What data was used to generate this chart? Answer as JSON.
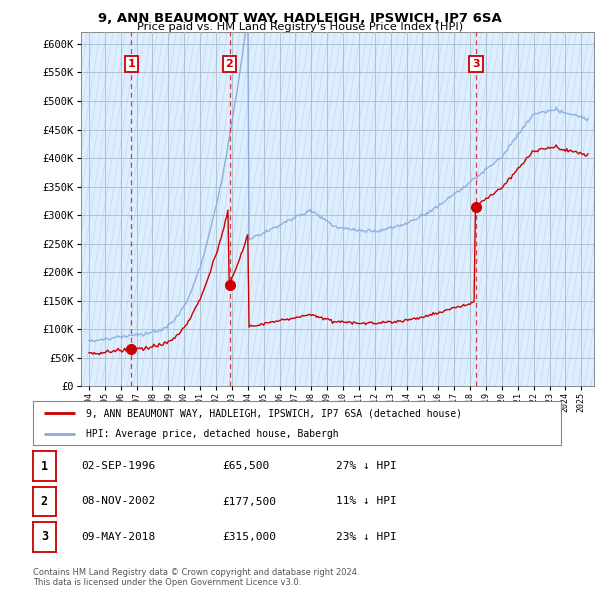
{
  "title": "9, ANN BEAUMONT WAY, HADLEIGH, IPSWICH, IP7 6SA",
  "subtitle": "Price paid vs. HM Land Registry's House Price Index (HPI)",
  "ylim": [
    0,
    620000
  ],
  "yticks": [
    0,
    50000,
    100000,
    150000,
    200000,
    250000,
    300000,
    350000,
    400000,
    450000,
    500000,
    550000,
    600000
  ],
  "ytick_labels": [
    "£0",
    "£50K",
    "£100K",
    "£150K",
    "£200K",
    "£250K",
    "£300K",
    "£350K",
    "£400K",
    "£450K",
    "£500K",
    "£550K",
    "£600K"
  ],
  "legend_line1": "9, ANN BEAUMONT WAY, HADLEIGH, IPSWICH, IP7 6SA (detached house)",
  "legend_line2": "HPI: Average price, detached house, Babergh",
  "sale_color": "#cc0000",
  "hpi_color": "#88aadd",
  "vline_color": "#cc0000",
  "sale_years": [
    1996.67,
    2002.85,
    2018.37
  ],
  "sale_prices": [
    65500,
    177500,
    315000
  ],
  "sale_labels": [
    "1",
    "2",
    "3"
  ],
  "table_data": [
    [
      "1",
      "02-SEP-1996",
      "£65,500",
      "27% ↓ HPI"
    ],
    [
      "2",
      "08-NOV-2002",
      "£177,500",
      "11% ↓ HPI"
    ],
    [
      "3",
      "09-MAY-2018",
      "£315,000",
      "23% ↓ HPI"
    ]
  ],
  "footnote": "Contains HM Land Registry data © Crown copyright and database right 2024.\nThis data is licensed under the Open Government Licence v3.0.",
  "bg_color": "#ddeeff",
  "grid_color": "#aabbcc"
}
